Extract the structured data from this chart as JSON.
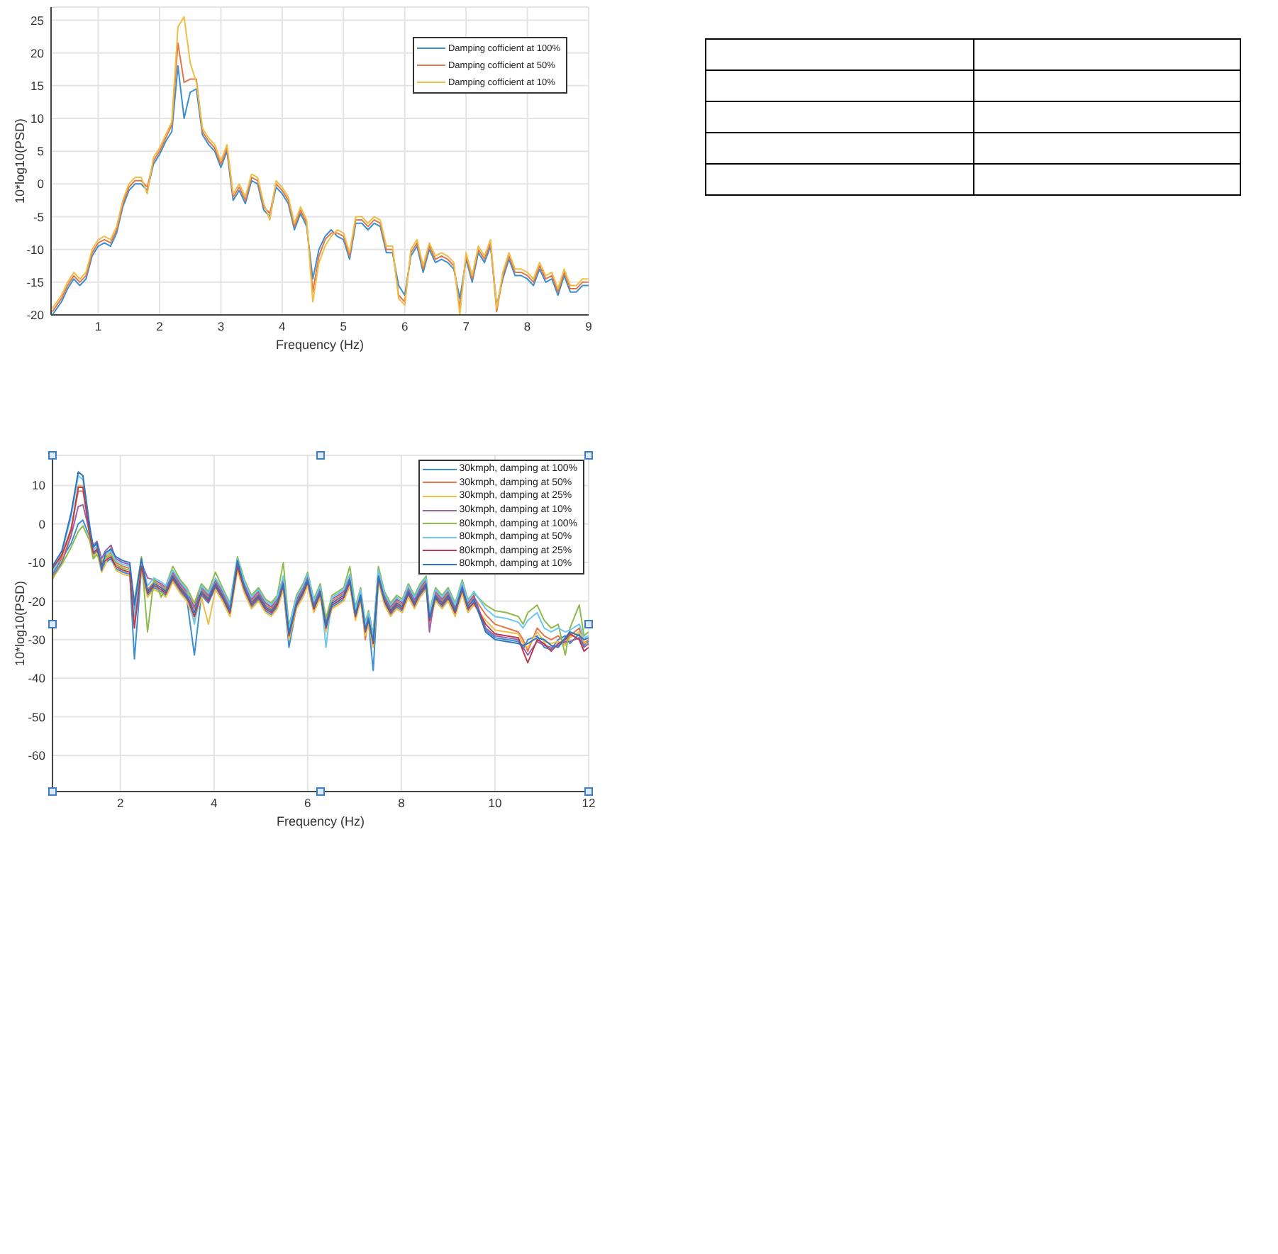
{
  "chart_data": [
    {
      "type": "line",
      "xlabel": "Frequency (Hz)",
      "ylabel": "10*log10(PSD)",
      "grid": true,
      "legend": "top right",
      "xlim": [
        0.23,
        9
      ],
      "xticks": [
        1,
        2,
        3,
        4,
        5,
        6,
        7,
        8,
        9
      ],
      "ylim": [
        -20,
        27
      ],
      "yticks": [
        -20,
        -15,
        -10,
        -5,
        0,
        5,
        10,
        15,
        20,
        25
      ],
      "x": [
        0.25,
        0.4,
        0.5,
        0.6,
        0.7,
        0.8,
        0.9,
        1,
        1.1,
        1.2,
        1.3,
        1.4,
        1.5,
        1.6,
        1.7,
        1.8,
        1.9,
        2,
        2.1,
        2.2,
        2.3,
        2.4,
        2.5,
        2.6,
        2.7,
        2.8,
        2.9,
        3,
        3.1,
        3.2,
        3.3,
        3.4,
        3.5,
        3.6,
        3.7,
        3.8,
        3.9,
        4,
        4.1,
        4.2,
        4.3,
        4.4,
        4.5,
        4.6,
        4.7,
        4.8,
        4.9,
        5,
        5.1,
        5.2,
        5.3,
        5.4,
        5.5,
        5.6,
        5.7,
        5.8,
        5.9,
        6,
        6.1,
        6.2,
        6.3,
        6.4,
        6.5,
        6.6,
        6.7,
        6.8,
        6.9,
        7,
        7.1,
        7.2,
        7.3,
        7.4,
        7.5,
        7.6,
        7.7,
        7.8,
        7.9,
        8,
        8.1,
        8.2,
        8.3,
        8.4,
        8.5,
        8.6,
        8.7,
        8.8,
        8.9,
        9
      ],
      "series": [
        {
          "name": "Damping cofficient at 100%",
          "color": "#3b8ed0",
          "values": [
            -20,
            -18,
            -16,
            -14.5,
            -15.5,
            -14.5,
            -11,
            -9.5,
            -9,
            -9.5,
            -7.5,
            -3.5,
            -1,
            0,
            0,
            -1,
            3,
            4.5,
            6.5,
            8,
            18,
            10,
            14,
            14.5,
            7.5,
            6,
            5,
            2.5,
            5,
            -2.5,
            -1,
            -3,
            0.5,
            0,
            -4,
            -5,
            -0.5,
            -1.5,
            -3,
            -7,
            -4.5,
            -6.5,
            -14.5,
            -10,
            -8,
            -7,
            -8,
            -8.5,
            -11.5,
            -6,
            -6,
            -7,
            -6,
            -6.5,
            -10.5,
            -10.5,
            -15.5,
            -17,
            -11,
            -9.5,
            -13.5,
            -10,
            -12,
            -11.5,
            -12,
            -13,
            -17.5,
            -11.5,
            -15,
            -10.5,
            -12,
            -9.5,
            -18.5,
            -14.5,
            -11.5,
            -14,
            -14,
            -14.5,
            -15.5,
            -13,
            -15,
            -14.5,
            -17,
            -14,
            -16.5,
            -16.5,
            -15.5,
            -15.5
          ]
        },
        {
          "name": "Damping cofficient at 50%",
          "color": "#e2774c",
          "values": [
            -19.5,
            -17.5,
            -15.5,
            -14,
            -15,
            -14,
            -10.5,
            -9,
            -8.5,
            -9,
            -7,
            -3,
            -0.5,
            0.5,
            0.5,
            -0.5,
            3.5,
            5,
            7,
            9,
            21.5,
            15.5,
            16,
            16,
            8,
            6.5,
            5.5,
            3,
            5.5,
            -2,
            -0.5,
            -2.5,
            1,
            0.5,
            -3.5,
            -4.5,
            0,
            -1,
            -2.5,
            -6.5,
            -4,
            -6,
            -16.5,
            -11,
            -8.5,
            -7.5,
            -7.5,
            -8,
            -11,
            -5.5,
            -5.5,
            -6.5,
            -5.5,
            -6,
            -10,
            -10,
            -17,
            -18,
            -10.5,
            -9,
            -13,
            -9.5,
            -11.5,
            -11,
            -11.5,
            -12.5,
            -19,
            -11,
            -14.5,
            -10,
            -11.5,
            -9,
            -19.5,
            -14,
            -11,
            -13.5,
            -13.5,
            -14,
            -15,
            -12.5,
            -14.5,
            -14,
            -16.5,
            -13.5,
            -16,
            -16,
            -15,
            -15
          ]
        },
        {
          "name": "Damping cofficient at 10%",
          "color": "#f0bd45",
          "values": [
            -19,
            -17,
            -15,
            -13.5,
            -14.5,
            -13.5,
            -10,
            -8.5,
            -8,
            -8.5,
            -6.5,
            -2.5,
            0,
            1,
            1,
            -1.5,
            4,
            5.5,
            7.5,
            9.5,
            24,
            25.5,
            18.5,
            15.5,
            8.5,
            7,
            6,
            3.5,
            6,
            -1.5,
            0,
            -2,
            1.5,
            1,
            -3,
            -5.5,
            0.5,
            -0.5,
            -2,
            -6,
            -3.5,
            -5.5,
            -18,
            -12,
            -9.5,
            -8,
            -7,
            -7.5,
            -10.5,
            -5,
            -5,
            -6,
            -5,
            -5.5,
            -9.5,
            -9.5,
            -17.5,
            -18.5,
            -10,
            -8.5,
            -12.5,
            -9,
            -11,
            -10.5,
            -11,
            -12,
            -20,
            -10.5,
            -14,
            -9.5,
            -11,
            -8.5,
            -19,
            -13.5,
            -10.5,
            -13,
            -13,
            -13.5,
            -14.5,
            -12,
            -14,
            -13.5,
            -16,
            -13,
            -15.5,
            -15.5,
            -14.5,
            -14.5
          ]
        }
      ]
    },
    {
      "type": "line",
      "xlabel": "Frequency (Hz)",
      "ylabel": "10*log10(PSD)",
      "grid": true,
      "legend": "top right",
      "xlim": [
        0.55,
        12
      ],
      "xticks": [
        2,
        4,
        6,
        8,
        10,
        12
      ],
      "ylim": [
        -69.4,
        17.8
      ],
      "yticks": [
        -60,
        -50,
        -40,
        -30,
        -20,
        -10,
        0,
        10
      ],
      "x": [
        0.55,
        0.75,
        0.95,
        1.1,
        1.2,
        1.35,
        1.42,
        1.5,
        1.6,
        1.68,
        1.8,
        1.9,
        2.05,
        2.2,
        2.3,
        2.45,
        2.58,
        2.72,
        2.87,
        2.97,
        3.12,
        3.28,
        3.42,
        3.58,
        3.73,
        3.88,
        4.03,
        4.18,
        4.34,
        4.5,
        4.65,
        4.8,
        4.95,
        5.1,
        5.22,
        5.35,
        5.48,
        5.6,
        5.76,
        5.9,
        6.0,
        6.13,
        6.27,
        6.39,
        6.52,
        6.65,
        6.77,
        6.9,
        7.02,
        7.13,
        7.23,
        7.3,
        7.4,
        7.51,
        7.64,
        7.77,
        7.9,
        8.02,
        8.15,
        8.28,
        8.4,
        8.53,
        8.6,
        8.73,
        8.87,
        9.0,
        9.15,
        9.3,
        9.42,
        9.55,
        9.8,
        10.0,
        10.25,
        10.5,
        10.6,
        10.7,
        10.9,
        11.05,
        11.2,
        11.35,
        11.5,
        11.6,
        11.8,
        11.9,
        12.0
      ],
      "series": [
        {
          "name": "30kmph, damping at 100%",
          "color": "#3b8ed0",
          "values": [
            -13,
            -9,
            -5,
            0,
            1,
            -3.5,
            -8,
            -7,
            -11.5,
            -10,
            -9,
            -11.5,
            -12.5,
            -13,
            -35,
            -11.5,
            -18.5,
            -16.5,
            -17.5,
            -18.5,
            -14.5,
            -17.5,
            -19.5,
            -34,
            -18.5,
            -20.5,
            -16.5,
            -19.5,
            -23.5,
            -11.5,
            -17.5,
            -21.5,
            -19.5,
            -22.5,
            -23.5,
            -21.5,
            -16.5,
            -32,
            -21.5,
            -18.5,
            -15.5,
            -22.5,
            -18.5,
            -27.5,
            -21.5,
            -20.5,
            -19.5,
            -15.5,
            -24.5,
            -19.5,
            -28.5,
            -25.5,
            -38,
            -14.5,
            -20.5,
            -23.5,
            -21.5,
            -22.5,
            -18.5,
            -21.5,
            -18.5,
            -16.5,
            -25.5,
            -19.5,
            -21.5,
            -19.5,
            -23.5,
            -17.5,
            -22.5,
            -20,
            -27.5,
            -29.5,
            -30,
            -30.5,
            -32.5,
            -30,
            -29,
            -32,
            -32.5,
            -30,
            -29,
            -31,
            -28.5,
            -31.5,
            -30.5
          ]
        },
        {
          "name": "30kmph, damping at 50%",
          "color": "#e2774c",
          "values": [
            -12,
            -8.5,
            -1,
            8.5,
            8.5,
            -2,
            -6.5,
            -6,
            -10,
            -8.5,
            -7.5,
            -10,
            -11,
            -11.5,
            -22,
            -10.5,
            -17,
            -15,
            -16,
            -17,
            -13,
            -16,
            -18,
            -22,
            -17,
            -19,
            -15,
            -18,
            -22,
            -10.5,
            -16,
            -20,
            -18,
            -21,
            -22,
            -20,
            -15,
            -28,
            -20,
            -17,
            -14,
            -21,
            -17,
            -26,
            -20,
            -19,
            -18,
            -14,
            -23,
            -18,
            -30,
            -24,
            -30,
            -13,
            -19,
            -22,
            -20,
            -21,
            -17,
            -20,
            -17,
            -15,
            -24,
            -18,
            -20,
            -18,
            -22,
            -16,
            -21,
            -19,
            -23.5,
            -26,
            -27,
            -28,
            -30,
            -33,
            -27,
            -29,
            -30,
            -29,
            -31,
            -29,
            -27,
            -31,
            -30
          ]
        },
        {
          "name": "30kmph, damping at 25%",
          "color": "#f0bd45",
          "values": [
            -14.5,
            -9.5,
            -2,
            10,
            10,
            -4,
            -8.5,
            -7.5,
            -12.5,
            -10.5,
            -6,
            -12,
            -13,
            -13.5,
            -25,
            -12,
            -19,
            -17,
            -18,
            -19,
            -15,
            -18,
            -20,
            -25,
            -19,
            -26,
            -17,
            -20,
            -24,
            -12,
            -18,
            -22,
            -20,
            -23,
            -24,
            -22,
            -17,
            -30,
            -22,
            -19,
            -16,
            -23,
            -19,
            -28,
            -22,
            -21,
            -20,
            -16,
            -25,
            -20,
            -29,
            -26,
            -32,
            -15,
            -21,
            -24,
            -22,
            -23,
            -19,
            -22,
            -19,
            -17,
            -26,
            -20,
            -22,
            -20,
            -24,
            -18,
            -23,
            -21,
            -25,
            -27.5,
            -28,
            -28.5,
            -31,
            -32,
            -28,
            -30.5,
            -31,
            -30.5,
            -31.5,
            -29.5,
            -28,
            -30.5,
            -31.5
          ]
        },
        {
          "name": "30kmph, damping at 10%",
          "color": "#9a62aa",
          "values": [
            -13.5,
            -10,
            -3,
            4.5,
            5,
            -2.5,
            -5.5,
            -4.5,
            -9,
            -7,
            -5.5,
            -9,
            -10,
            -10.5,
            -23,
            -10,
            -14,
            -14.5,
            -15.5,
            -16.5,
            -12.5,
            -15.5,
            -17.5,
            -21.5,
            -16.5,
            -18.5,
            -14.5,
            -17.5,
            -21.5,
            -10,
            -15.5,
            -19.5,
            -17.5,
            -20.5,
            -21.5,
            -19.5,
            -14.5,
            -27.5,
            -19.5,
            -16.5,
            -13.5,
            -20.5,
            -16.5,
            -25.5,
            -19.5,
            -18.5,
            -17.5,
            -13.5,
            -22.5,
            -17.5,
            -26.5,
            -23.5,
            -29.5,
            -12.5,
            -18.5,
            -21.5,
            -19.5,
            -20.5,
            -16.5,
            -19.5,
            -16.5,
            -14.5,
            -28,
            -17.5,
            -19.5,
            -17.5,
            -21.5,
            -15.5,
            -20.5,
            -18.5,
            -27,
            -29,
            -29.5,
            -30,
            -32,
            -34,
            -30.5,
            -31.5,
            -32,
            -31.5,
            -30.5,
            -30.5,
            -29.5,
            -32,
            -31
          ]
        },
        {
          "name": "80kmph, damping at 100%",
          "color": "#8dbb4c",
          "values": [
            -14,
            -10.5,
            -6,
            -2,
            -0.5,
            -4.5,
            -9,
            -8,
            -9.5,
            -9,
            -8,
            -10.5,
            -11.5,
            -12,
            -20,
            -8.5,
            -28,
            -14,
            -19,
            -16,
            -11,
            -14.5,
            -16.5,
            -20.5,
            -15.5,
            -17.5,
            -12.5,
            -16.5,
            -20.5,
            -8.5,
            -14.5,
            -18.5,
            -16.5,
            -19.5,
            -20.5,
            -18.5,
            -10,
            -26.5,
            -18.5,
            -15.5,
            -12.5,
            -19.5,
            -15.5,
            -24.5,
            -18.5,
            -17.5,
            -16.5,
            -11,
            -21.5,
            -16.5,
            -25.5,
            -22.5,
            -28.5,
            -11,
            -17.5,
            -20.5,
            -18.5,
            -19.5,
            -15.5,
            -18.5,
            -15.5,
            -13.5,
            -22.5,
            -16.5,
            -18.5,
            -16.5,
            -20.5,
            -14.5,
            -19.5,
            -18,
            -21,
            -22.5,
            -23,
            -24,
            -26,
            -23,
            -21,
            -25,
            -27,
            -26,
            -34,
            -27,
            -21,
            -29,
            -28
          ]
        },
        {
          "name": "80kmph, damping at 50%",
          "color": "#6cc8ee",
          "values": [
            -12.5,
            -7.5,
            2,
            12.5,
            11.5,
            -1.5,
            -7,
            -5.5,
            -11,
            -8,
            -7,
            -9.5,
            -10.5,
            -11,
            -24,
            -9.5,
            -16,
            -14,
            -15,
            -16,
            -12,
            -15,
            -17,
            -26,
            -16,
            -18,
            -14,
            -17,
            -21,
            -9,
            -15,
            -19,
            -17,
            -20,
            -21,
            -19,
            -13.5,
            -27,
            -19,
            -16,
            -13,
            -20,
            -16,
            -32,
            -19,
            -18,
            -17,
            -13,
            -22,
            -17,
            -26,
            -23,
            -29,
            -12,
            -18,
            -21,
            -19,
            -20,
            -16,
            -19,
            -16,
            -14,
            -23,
            -17,
            -19,
            -17,
            -21,
            -15,
            -20,
            -17.5,
            -22,
            -24,
            -24.5,
            -25.5,
            -27,
            -25,
            -23,
            -27,
            -28,
            -27,
            -28,
            -27.5,
            -26,
            -29.5,
            -29
          ]
        },
        {
          "name": "80kmph, damping at 25%",
          "color": "#b83c52",
          "values": [
            -11.5,
            -8,
            -1.5,
            9.5,
            9.5,
            -3,
            -7.5,
            -6.5,
            -10.5,
            -9.5,
            -8.5,
            -11,
            -12,
            -12.5,
            -27,
            -11,
            -18,
            -16,
            -17,
            -18,
            -14,
            -17,
            -19,
            -24,
            -18,
            -20,
            -16,
            -19,
            -23,
            -11,
            -17,
            -21,
            -19,
            -22,
            -23,
            -21,
            -16,
            -29,
            -21,
            -18,
            -15,
            -22,
            -18,
            -27,
            -21,
            -20,
            -19,
            -15,
            -24,
            -19,
            -28,
            -25,
            -31,
            -14,
            -20,
            -23,
            -21,
            -22,
            -18,
            -21,
            -18,
            -16,
            -25,
            -19,
            -21,
            -19,
            -23,
            -17,
            -22,
            -20.5,
            -26,
            -28.5,
            -29,
            -29.5,
            -33,
            -36,
            -30,
            -31,
            -33,
            -31,
            -30,
            -28.5,
            -30,
            -33,
            -32
          ]
        },
        {
          "name": "80kmph, damping at 10%",
          "color": "#2f74c0",
          "values": [
            -11,
            -7,
            3,
            13.5,
            12.5,
            -1,
            -6,
            -5,
            -12,
            -7.5,
            -6.5,
            -8.5,
            -9.5,
            -10,
            -21,
            -9,
            -17.5,
            -15.5,
            -16.5,
            -17.5,
            -13.5,
            -16.5,
            -18.5,
            -23,
            -17.5,
            -19.5,
            -15.5,
            -18.5,
            -22.5,
            -9.5,
            -16.5,
            -20.5,
            -18.5,
            -21.5,
            -22.5,
            -20.5,
            -15.5,
            -28.5,
            -20.5,
            -17.5,
            -14.5,
            -21.5,
            -17.5,
            -26.5,
            -20.5,
            -19.5,
            -18.5,
            -14.5,
            -23.5,
            -18.5,
            -27.5,
            -24.5,
            -30.5,
            -13.5,
            -19.5,
            -22.5,
            -20.5,
            -21.5,
            -17.5,
            -20.5,
            -17.5,
            -15.5,
            -24.5,
            -18.5,
            -20.5,
            -18.5,
            -22.5,
            -16.5,
            -21.5,
            -19.5,
            -28,
            -30,
            -30.5,
            -31,
            -31.5,
            -31,
            -29.5,
            -30,
            -31.5,
            -32,
            -29.5,
            -28,
            -29,
            -30,
            -29.5
          ]
        }
      ]
    }
  ]
}
